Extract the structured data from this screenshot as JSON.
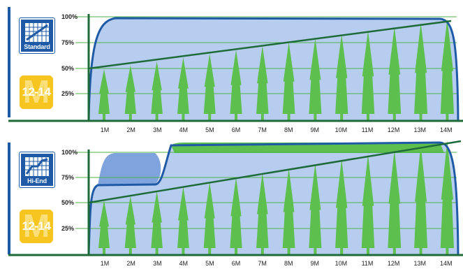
{
  "panels": [
    {
      "plan_label": "Standard",
      "size_label": "12-14",
      "size_mark": "M",
      "icon": "chart-standard-icon"
    },
    {
      "plan_label": "Hi-End",
      "size_label": "12-14",
      "size_mark": "M",
      "icon": "chart-hiend-icon"
    }
  ],
  "y_ticks": [
    "100%",
    "75%",
    "50%",
    "25%"
  ],
  "x_ticks": [
    "1M",
    "2M",
    "3M",
    "4M",
    "5M",
    "6M",
    "7M",
    "8M",
    "9M",
    "10M",
    "11M",
    "12M",
    "13M",
    "14M"
  ],
  "colors": {
    "axis_green": "#1e6b3a",
    "grid_green": "#4fb24a",
    "area_blue": "#b7cdef",
    "curve_blue": "#1f5aa6",
    "bump_blue": "#7fa3dc",
    "band_green": "#5cbf4e",
    "tree_green": "#5cbf4e",
    "badge_blue": "#1f5aa6",
    "badge_yellow": "#f7c520"
  }
}
